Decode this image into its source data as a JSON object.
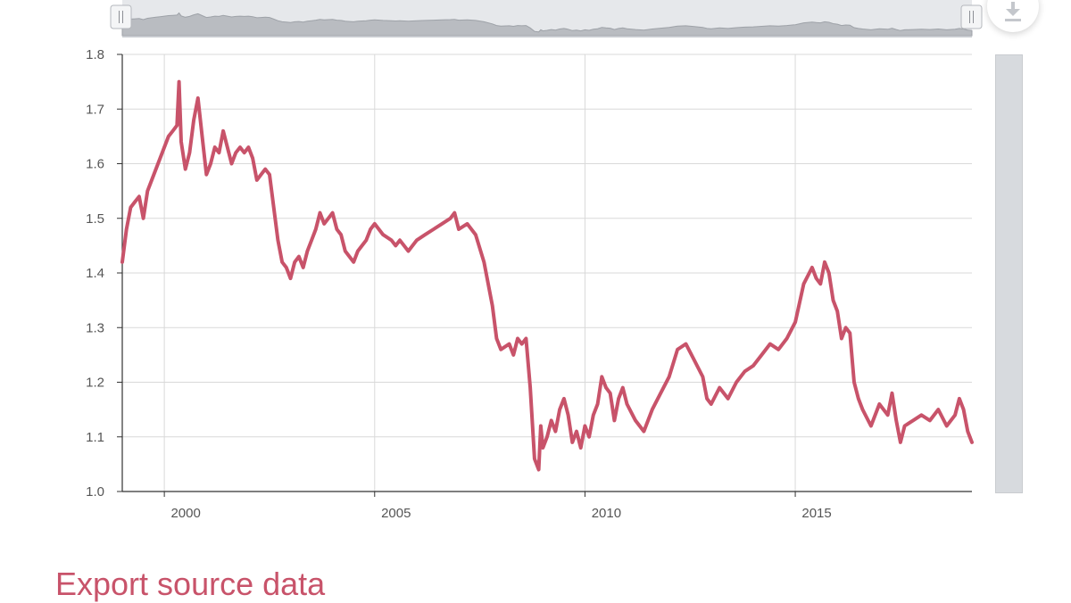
{
  "chart_data": {
    "type": "line",
    "title": "",
    "xlabel": "",
    "ylabel": "",
    "xlim": [
      1999.0,
      2019.2
    ],
    "ylim": [
      1.0,
      1.8
    ],
    "x_ticks": [
      "2000",
      "2005",
      "2010",
      "2015"
    ],
    "x_tick_values": [
      2000,
      2005,
      2010,
      2015
    ],
    "y_ticks": [
      "1.0",
      "1.1",
      "1.2",
      "1.3",
      "1.4",
      "1.5",
      "1.6",
      "1.7",
      "1.8"
    ],
    "y_tick_values": [
      1.0,
      1.1,
      1.2,
      1.3,
      1.4,
      1.5,
      1.6,
      1.7,
      1.8
    ],
    "grid": true,
    "series": [
      {
        "color": "#c8536a",
        "x": [
          1999.0,
          1999.1,
          1999.2,
          1999.3,
          1999.4,
          1999.5,
          1999.6,
          1999.7,
          1999.8,
          1999.9,
          2000.0,
          2000.1,
          2000.2,
          2000.3,
          2000.35,
          2000.4,
          2000.5,
          2000.6,
          2000.7,
          2000.8,
          2000.9,
          2001.0,
          2001.1,
          2001.2,
          2001.3,
          2001.4,
          2001.5,
          2001.6,
          2001.7,
          2001.8,
          2001.9,
          2002.0,
          2002.1,
          2002.2,
          2002.3,
          2002.4,
          2002.5,
          2002.6,
          2002.7,
          2002.8,
          2002.9,
          2003.0,
          2003.1,
          2003.2,
          2003.3,
          2003.4,
          2003.5,
          2003.6,
          2003.7,
          2003.8,
          2003.9,
          2004.0,
          2004.1,
          2004.2,
          2004.3,
          2004.4,
          2004.5,
          2004.6,
          2004.7,
          2004.8,
          2004.9,
          2005.0,
          2005.2,
          2005.4,
          2005.5,
          2005.6,
          2005.8,
          2006.0,
          2006.2,
          2006.4,
          2006.6,
          2006.8,
          2006.9,
          2007.0,
          2007.2,
          2007.4,
          2007.6,
          2007.8,
          2007.9,
          2008.0,
          2008.2,
          2008.3,
          2008.4,
          2008.5,
          2008.6,
          2008.7,
          2008.8,
          2008.9,
          2008.95,
          2009.0,
          2009.1,
          2009.2,
          2009.3,
          2009.4,
          2009.5,
          2009.6,
          2009.7,
          2009.8,
          2009.9,
          2010.0,
          2010.1,
          2010.2,
          2010.3,
          2010.4,
          2010.5,
          2010.6,
          2010.7,
          2010.8,
          2010.9,
          2011.0,
          2011.2,
          2011.4,
          2011.6,
          2011.8,
          2012.0,
          2012.2,
          2012.4,
          2012.6,
          2012.8,
          2012.9,
          2013.0,
          2013.2,
          2013.4,
          2013.6,
          2013.8,
          2014.0,
          2014.2,
          2014.4,
          2014.6,
          2014.8,
          2015.0,
          2015.2,
          2015.4,
          2015.5,
          2015.6,
          2015.7,
          2015.8,
          2015.9,
          2016.0,
          2016.1,
          2016.2,
          2016.3,
          2016.4,
          2016.5,
          2016.6,
          2016.8,
          2017.0,
          2017.2,
          2017.3,
          2017.4,
          2017.5,
          2017.6,
          2017.8,
          2018.0,
          2018.2,
          2018.4,
          2018.6,
          2018.8,
          2018.9,
          2019.0,
          2019.1,
          2019.2
        ],
        "y": [
          1.42,
          1.48,
          1.52,
          1.53,
          1.54,
          1.5,
          1.55,
          1.57,
          1.59,
          1.61,
          1.63,
          1.65,
          1.66,
          1.67,
          1.75,
          1.64,
          1.59,
          1.62,
          1.68,
          1.72,
          1.65,
          1.58,
          1.6,
          1.63,
          1.62,
          1.66,
          1.63,
          1.6,
          1.62,
          1.63,
          1.62,
          1.63,
          1.61,
          1.57,
          1.58,
          1.59,
          1.58,
          1.52,
          1.46,
          1.42,
          1.41,
          1.39,
          1.42,
          1.43,
          1.41,
          1.44,
          1.46,
          1.48,
          1.51,
          1.49,
          1.5,
          1.51,
          1.48,
          1.47,
          1.44,
          1.43,
          1.42,
          1.44,
          1.45,
          1.46,
          1.48,
          1.49,
          1.47,
          1.46,
          1.45,
          1.46,
          1.44,
          1.46,
          1.47,
          1.48,
          1.49,
          1.5,
          1.51,
          1.48,
          1.49,
          1.47,
          1.42,
          1.34,
          1.28,
          1.26,
          1.27,
          1.25,
          1.28,
          1.27,
          1.28,
          1.19,
          1.06,
          1.04,
          1.12,
          1.08,
          1.1,
          1.13,
          1.11,
          1.15,
          1.17,
          1.14,
          1.09,
          1.11,
          1.08,
          1.12,
          1.1,
          1.14,
          1.16,
          1.21,
          1.19,
          1.18,
          1.13,
          1.17,
          1.19,
          1.16,
          1.13,
          1.11,
          1.15,
          1.18,
          1.21,
          1.26,
          1.27,
          1.24,
          1.21,
          1.17,
          1.16,
          1.19,
          1.17,
          1.2,
          1.22,
          1.23,
          1.25,
          1.27,
          1.26,
          1.28,
          1.31,
          1.38,
          1.41,
          1.39,
          1.38,
          1.42,
          1.4,
          1.35,
          1.33,
          1.28,
          1.3,
          1.29,
          1.2,
          1.17,
          1.15,
          1.12,
          1.16,
          1.14,
          1.18,
          1.13,
          1.09,
          1.12,
          1.13,
          1.14,
          1.13,
          1.15,
          1.12,
          1.14,
          1.17,
          1.15,
          1.11,
          1.09
        ]
      }
    ]
  },
  "ui": {
    "export_label": "Export source data",
    "navigator_handle_glyph": "||",
    "download_icon": "download-arrow-icon"
  }
}
